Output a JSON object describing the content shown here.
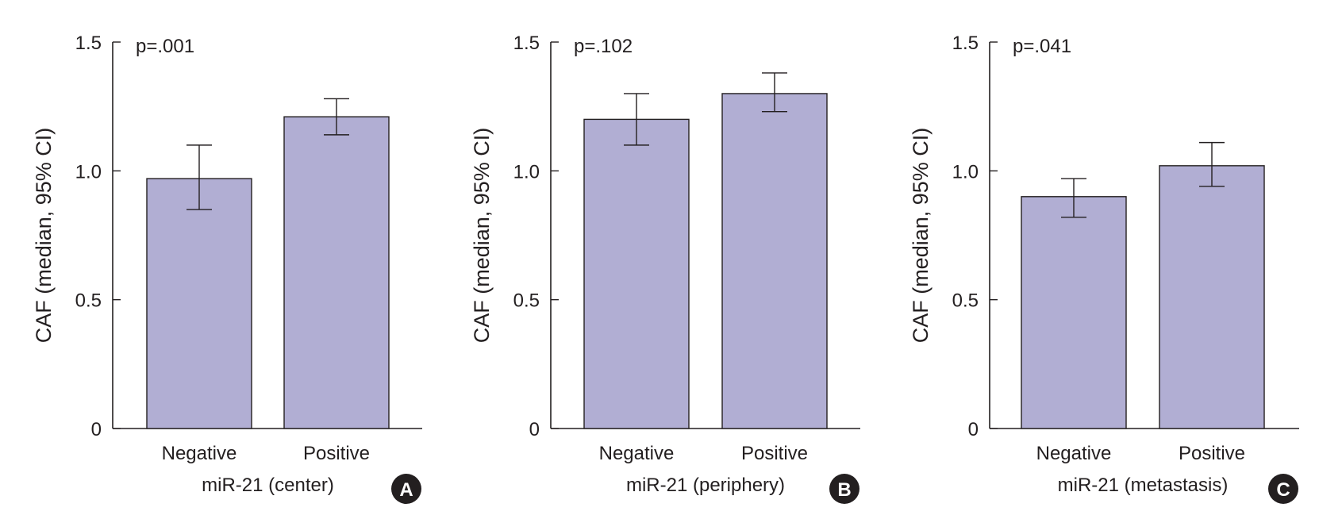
{
  "colors": {
    "bar_fill": "#b1aed3",
    "bar_stroke": "#231f20",
    "axis": "#231f20",
    "badge_fill": "#231f20",
    "badge_text": "#ffffff"
  },
  "chart_data": [
    {
      "type": "bar",
      "panel_label": "A",
      "annotation": "p=.001",
      "categories": [
        "Negative",
        "Positive"
      ],
      "values": [
        0.97,
        1.21
      ],
      "ci_low": [
        0.85,
        1.14
      ],
      "ci_high": [
        1.1,
        1.28
      ],
      "xlabel": "miR-21 (center)",
      "ylabel": "CAF (median, 95% CI)",
      "ylim": [
        0,
        1.5
      ],
      "yticks": [
        0,
        0.5,
        1.0,
        1.5
      ],
      "ytick_labels": [
        "0",
        "0.5",
        "1.0",
        "1.5"
      ],
      "grid": false
    },
    {
      "type": "bar",
      "panel_label": "B",
      "annotation": "p=.102",
      "categories": [
        "Negative",
        "Positive"
      ],
      "values": [
        1.2,
        1.3
      ],
      "ci_low": [
        1.1,
        1.23
      ],
      "ci_high": [
        1.3,
        1.38
      ],
      "xlabel": "miR-21 (periphery)",
      "ylabel": "CAF (median, 95% CI)",
      "ylim": [
        0,
        1.5
      ],
      "yticks": [
        0,
        0.5,
        1.0,
        1.5
      ],
      "ytick_labels": [
        "0",
        "0.5",
        "1.0",
        "1.5"
      ],
      "grid": false
    },
    {
      "type": "bar",
      "panel_label": "C",
      "annotation": "p=.041",
      "categories": [
        "Negative",
        "Positive"
      ],
      "values": [
        0.9,
        1.02
      ],
      "ci_low": [
        0.82,
        0.94
      ],
      "ci_high": [
        0.97,
        1.11
      ],
      "xlabel": "miR-21 (metastasis)",
      "ylabel": "CAF (median, 95% CI)",
      "ylim": [
        0,
        1.5
      ],
      "yticks": [
        0,
        0.5,
        1.0,
        1.5
      ],
      "ytick_labels": [
        "0",
        "0.5",
        "1.0",
        "1.5"
      ],
      "grid": false
    }
  ]
}
